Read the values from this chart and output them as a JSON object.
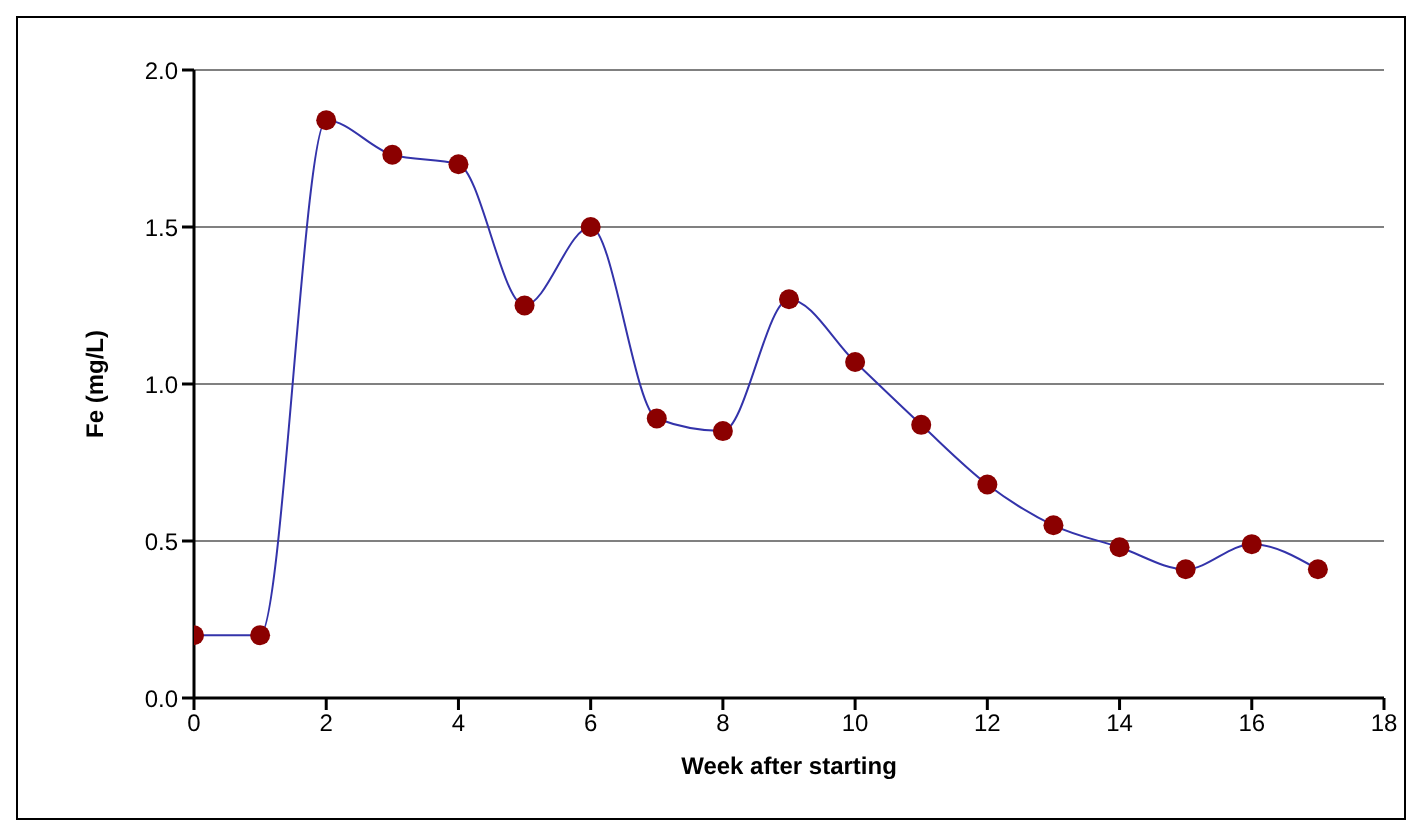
{
  "chart_data": {
    "type": "line",
    "xlabel": "Week after starting",
    "ylabel": "Fe (mg/L)",
    "x": [
      0,
      1,
      2,
      3,
      4,
      5,
      6,
      7,
      8,
      9,
      10,
      11,
      12,
      13,
      14,
      15,
      16,
      17
    ],
    "series": [
      {
        "color": "#3333aa",
        "marker": "circle",
        "colors": [
          "#8b0000",
          "#8b0000",
          "#8b0000",
          "#8b0000",
          "#8b0000",
          "#8b0000",
          "#8b0000",
          "#8b0000",
          "#8b0000",
          "#8b0000",
          "#8b0000",
          "#8b0000",
          "#8b0000",
          "#8b0000",
          "#8b0000",
          "#8b0000",
          "#8b0000",
          "#8b0000"
        ],
        "values": [
          0.2,
          0.2,
          1.84,
          1.73,
          1.7,
          1.25,
          1.5,
          0.89,
          0.85,
          1.27,
          1.07,
          0.87,
          0.68,
          0.55,
          0.48,
          0.41,
          0.49,
          0.41
        ]
      }
    ],
    "xlim": [
      0,
      18
    ],
    "xticks": [
      0,
      2,
      4,
      6,
      8,
      10,
      12,
      14,
      16,
      18
    ],
    "ylim": [
      0,
      2
    ],
    "yticks": [
      {
        "value": 0,
        "label": "0.0"
      },
      {
        "value": 0.5,
        "label": "0.5"
      },
      {
        "value": 1,
        "label": "1.0"
      },
      {
        "value": 1.5,
        "label": "1.5"
      },
      {
        "value": 2,
        "label": "2.0"
      }
    ],
    "grid": "y",
    "line_style": "solid"
  }
}
